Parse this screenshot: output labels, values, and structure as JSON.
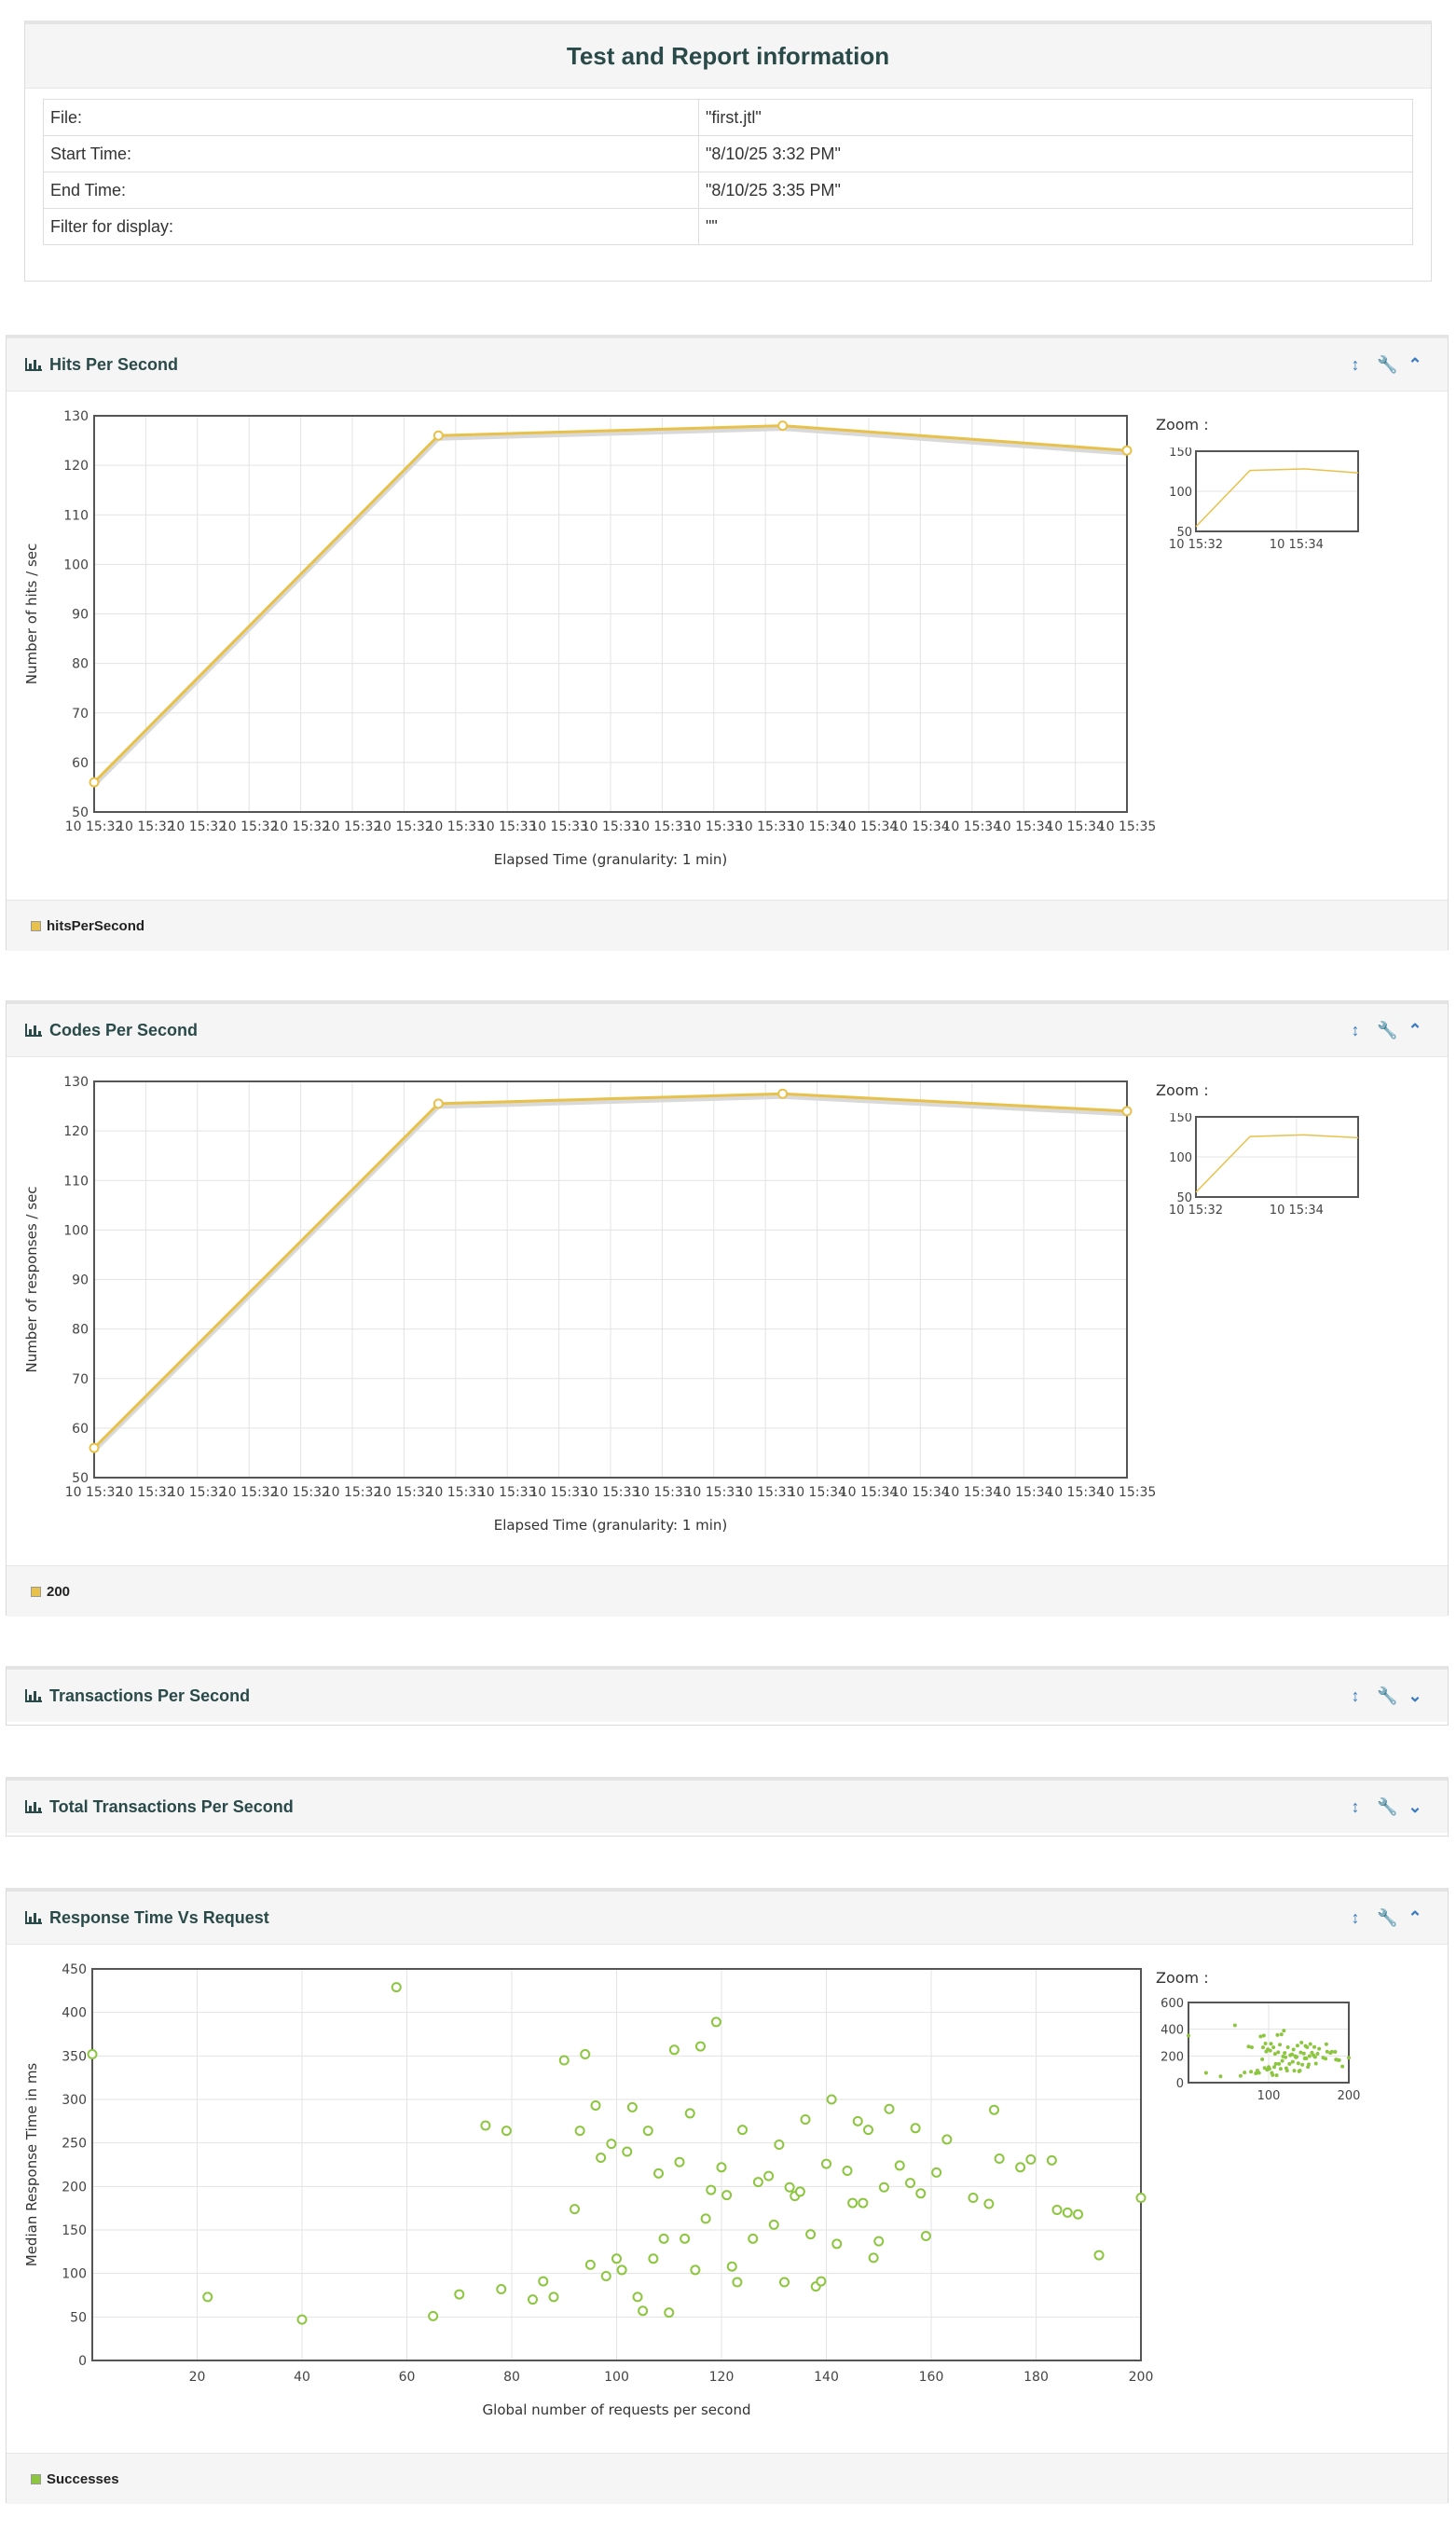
{
  "info": {
    "title": "Test and Report information",
    "rows": [
      {
        "key": "File:",
        "value": "\"first.jtl\""
      },
      {
        "key": "Start Time:",
        "value": "\"8/10/25 3:32 PM\""
      },
      {
        "key": "End Time:",
        "value": "\"8/10/25 3:35 PM\""
      },
      {
        "key": "Filter for display:",
        "value": "\"\""
      }
    ]
  },
  "icons": {
    "expand": "resize-vertical-icon",
    "settings": "wrench-icon",
    "collapse": "chevron-up-icon",
    "expand_more": "chevron-down-icon"
  },
  "panels": {
    "hits": {
      "title": "Hits Per Second",
      "legend": "hitsPerSecond",
      "zoom": "Zoom :"
    },
    "codes": {
      "title": "Codes Per Second",
      "legend": "200",
      "zoom": "Zoom :"
    },
    "tps": {
      "title": "Transactions Per Second"
    },
    "ttps": {
      "title": "Total Transactions Per Second"
    },
    "rtvr": {
      "title": "Response Time Vs Request",
      "legend": "Successes",
      "zoom": "Zoom :"
    }
  },
  "chart_data": [
    {
      "type": "line",
      "title": "Hits Per Second",
      "xlabel": "Elapsed Time (granularity: 1 min)",
      "ylabel": "Number of hits / sec",
      "ylim": [
        50,
        130
      ],
      "yticks": [
        50,
        60,
        70,
        80,
        90,
        100,
        110,
        120,
        130
      ],
      "xtick_labels": [
        "10 15:32",
        "10 15:32",
        "10 15:32",
        "10 15:32",
        "10 15:32",
        "10 15:32",
        "10 15:32",
        "10 15:33",
        "10 15:33",
        "10 15:33",
        "10 15:33",
        "10 15:33",
        "10 15:33",
        "10 15:33",
        "10 15:34",
        "10 15:34",
        "10 15:34",
        "10 15:34",
        "10 15:34",
        "10 15:34",
        "10 15:35"
      ],
      "x": [
        "15:32",
        "15:33",
        "15:34",
        "15:35"
      ],
      "series": [
        {
          "name": "hitsPerSecond",
          "color": "#e8c14a",
          "values": [
            56,
            126,
            128,
            123
          ]
        }
      ],
      "zoom": {
        "ylim": [
          50,
          150
        ],
        "yticks": [
          50,
          100,
          150
        ],
        "xtick_labels": [
          "10 15:32",
          "10 15:34"
        ]
      },
      "grid": true,
      "legend": "bottom"
    },
    {
      "type": "line",
      "title": "Codes Per Second",
      "xlabel": "Elapsed Time (granularity: 1 min)",
      "ylabel": "Number of responses / sec",
      "ylim": [
        50,
        130
      ],
      "yticks": [
        50,
        60,
        70,
        80,
        90,
        100,
        110,
        120,
        130
      ],
      "xtick_labels": [
        "10 15:32",
        "10 15:32",
        "10 15:32",
        "10 15:32",
        "10 15:32",
        "10 15:32",
        "10 15:32",
        "10 15:33",
        "10 15:33",
        "10 15:33",
        "10 15:33",
        "10 15:33",
        "10 15:33",
        "10 15:33",
        "10 15:34",
        "10 15:34",
        "10 15:34",
        "10 15:34",
        "10 15:34",
        "10 15:34",
        "10 15:35"
      ],
      "x": [
        "15:32",
        "15:33",
        "15:34",
        "15:35"
      ],
      "series": [
        {
          "name": "200",
          "color": "#e8c14a",
          "values": [
            56,
            125.5,
            127.5,
            124
          ]
        }
      ],
      "zoom": {
        "ylim": [
          50,
          150
        ],
        "yticks": [
          50,
          100,
          150
        ],
        "xtick_labels": [
          "10 15:32",
          "10 15:34"
        ]
      },
      "grid": true,
      "legend": "bottom"
    },
    {
      "type": "scatter",
      "title": "Response Time Vs Request",
      "xlabel": "Global number of requests per second",
      "ylabel": "Median Response Time in ms",
      "xlim": [
        0,
        200
      ],
      "ylim": [
        0,
        450
      ],
      "xticks": [
        20,
        40,
        60,
        80,
        100,
        120,
        140,
        160,
        180,
        200
      ],
      "yticks": [
        0,
        50,
        100,
        150,
        200,
        250,
        300,
        350,
        400,
        450
      ],
      "series": [
        {
          "name": "Successes",
          "color": "#8cc63f",
          "points": [
            [
              0,
              352
            ],
            [
              22,
              73
            ],
            [
              40,
              47
            ],
            [
              58,
              429
            ],
            [
              65,
              51
            ],
            [
              70,
              76
            ],
            [
              75,
              270
            ],
            [
              78,
              82
            ],
            [
              79,
              264
            ],
            [
              84,
              70
            ],
            [
              86,
              91
            ],
            [
              88,
              73
            ],
            [
              90,
              345
            ],
            [
              92,
              174
            ],
            [
              93,
              264
            ],
            [
              94,
              352
            ],
            [
              95,
              110
            ],
            [
              96,
              293
            ],
            [
              97,
              233
            ],
            [
              98,
              97
            ],
            [
              99,
              249
            ],
            [
              100,
              117
            ],
            [
              101,
              104
            ],
            [
              102,
              240
            ],
            [
              103,
              291
            ],
            [
              104,
              73
            ],
            [
              105,
              57
            ],
            [
              106,
              264
            ],
            [
              107,
              117
            ],
            [
              108,
              215
            ],
            [
              109,
              140
            ],
            [
              110,
              55
            ],
            [
              111,
              357
            ],
            [
              112,
              228
            ],
            [
              113,
              140
            ],
            [
              114,
              284
            ],
            [
              115,
              104
            ],
            [
              116,
              361
            ],
            [
              117,
              163
            ],
            [
              118,
              196
            ],
            [
              119,
              389
            ],
            [
              120,
              222
            ],
            [
              121,
              190
            ],
            [
              122,
              108
            ],
            [
              123,
              90
            ],
            [
              124,
              265
            ],
            [
              126,
              140
            ],
            [
              127,
              205
            ],
            [
              129,
              212
            ],
            [
              130,
              156
            ],
            [
              131,
              248
            ],
            [
              132,
              90
            ],
            [
              133,
              199
            ],
            [
              134,
              189
            ],
            [
              135,
              194
            ],
            [
              136,
              277
            ],
            [
              137,
              145
            ],
            [
              138,
              85
            ],
            [
              139,
              91
            ],
            [
              140,
              226
            ],
            [
              141,
              300
            ],
            [
              142,
              134
            ],
            [
              144,
              218
            ],
            [
              145,
              181
            ],
            [
              146,
              275
            ],
            [
              147,
              181
            ],
            [
              148,
              265
            ],
            [
              149,
              118
            ],
            [
              150,
              137
            ],
            [
              151,
              199
            ],
            [
              152,
              289
            ],
            [
              154,
              224
            ],
            [
              156,
              204
            ],
            [
              157,
              267
            ],
            [
              158,
              192
            ],
            [
              159,
              143
            ],
            [
              161,
              216
            ],
            [
              163,
              254
            ],
            [
              168,
              187
            ],
            [
              171,
              180
            ],
            [
              172,
              288
            ],
            [
              173,
              232
            ],
            [
              177,
              222
            ],
            [
              179,
              231
            ],
            [
              183,
              230
            ],
            [
              184,
              173
            ],
            [
              186,
              170
            ],
            [
              188,
              168
            ],
            [
              192,
              121
            ],
            [
              200,
              187
            ]
          ]
        }
      ],
      "zoom": {
        "ylim": [
          0,
          600
        ],
        "yticks": [
          0,
          200,
          400,
          600
        ],
        "xticks": [
          100,
          200
        ]
      },
      "grid": true,
      "legend": "bottom"
    }
  ]
}
